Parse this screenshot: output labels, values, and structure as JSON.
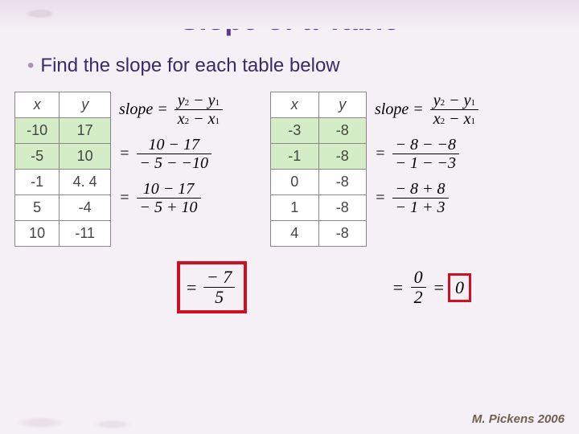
{
  "title": "Slope of a Table",
  "instruction": "Find the slope for each table below",
  "footer": "M. Pickens 2006",
  "table1": {
    "headers": [
      "x",
      "y"
    ],
    "rows": [
      [
        "-10",
        "17"
      ],
      [
        "-5",
        "10"
      ],
      [
        "-1",
        "4. 4"
      ],
      [
        "5",
        "-4"
      ],
      [
        "10",
        "-11"
      ]
    ],
    "highlight_rows": [
      0,
      1
    ],
    "highlight_color": "#d5edc6"
  },
  "table2": {
    "headers": [
      "x",
      "y"
    ],
    "rows": [
      [
        "-3",
        "-8"
      ],
      [
        "-1",
        "-8"
      ],
      [
        "0",
        "-8"
      ],
      [
        "1",
        "-8"
      ],
      [
        "4",
        "-8"
      ]
    ],
    "highlight_rows": [
      0,
      1
    ],
    "highlight_color": "#d5edc6"
  },
  "formula": {
    "label": "slope",
    "num": "y₂ − y₁",
    "den": "x₂ − x₁"
  },
  "eq1": {
    "step1": {
      "num": "10 − 17",
      "den": "− 5 − −10"
    },
    "step2": {
      "num": "10 − 17",
      "den": "− 5 + 10"
    },
    "final": {
      "num": "− 7",
      "den": "5"
    }
  },
  "eq2": {
    "step1": {
      "num": "− 8 − −8",
      "den": "− 1 − −3"
    },
    "step2": {
      "num": "− 8 + 8",
      "den": "− 1 + 3"
    },
    "final": {
      "lhs_num": "0",
      "lhs_den": "2",
      "result": "0"
    }
  },
  "box_color": "#d01020"
}
